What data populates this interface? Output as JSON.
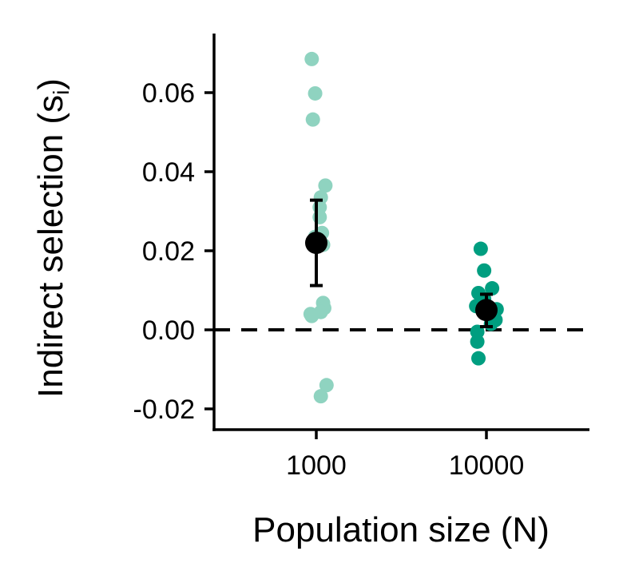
{
  "chart_data": {
    "type": "scatter",
    "xlabel": "Population size (N)",
    "ylabel": {
      "main": "Indirect selection (s",
      "sub": "i",
      "close": ")"
    },
    "categories": [
      "1000",
      "10000"
    ],
    "ylim": [
      -0.024,
      0.074
    ],
    "yticks": [
      -0.02,
      0.0,
      0.02,
      0.04,
      0.06
    ],
    "ytick_labels": [
      "-0.02",
      "0.00",
      "0.02",
      "0.04",
      "0.06"
    ],
    "reference_line": {
      "y": 0.0,
      "style": "dashed"
    },
    "grid": false,
    "legend": "none",
    "series": [
      {
        "category": "1000",
        "color": "#8fd3c0",
        "points": [
          {
            "jitter": -0.04,
            "y": 0.0685
          },
          {
            "jitter": -0.01,
            "y": 0.0598
          },
          {
            "jitter": -0.03,
            "y": 0.0532
          },
          {
            "jitter": 0.08,
            "y": 0.0365
          },
          {
            "jitter": 0.04,
            "y": 0.0335
          },
          {
            "jitter": 0.03,
            "y": 0.031
          },
          {
            "jitter": 0.03,
            "y": 0.0285
          },
          {
            "jitter": 0.05,
            "y": 0.0245
          },
          {
            "jitter": -0.01,
            "y": 0.0235
          },
          {
            "jitter": 0.06,
            "y": 0.0215
          },
          {
            "jitter": 0.06,
            "y": 0.0068
          },
          {
            "jitter": 0.07,
            "y": 0.0055
          },
          {
            "jitter": 0.04,
            "y": 0.0045
          },
          {
            "jitter": -0.05,
            "y": 0.004
          },
          {
            "jitter": -0.04,
            "y": 0.0035
          },
          {
            "jitter": 0.09,
            "y": -0.014
          },
          {
            "jitter": 0.04,
            "y": -0.0168
          }
        ],
        "mean": 0.022,
        "error_low": 0.0112,
        "error_high": 0.0328
      },
      {
        "category": "10000",
        "color": "#009e80",
        "points": [
          {
            "jitter": -0.05,
            "y": 0.0205
          },
          {
            "jitter": -0.02,
            "y": 0.015
          },
          {
            "jitter": 0.05,
            "y": 0.0105
          },
          {
            "jitter": -0.07,
            "y": 0.0093
          },
          {
            "jitter": -0.02,
            "y": 0.0078
          },
          {
            "jitter": -0.09,
            "y": 0.006
          },
          {
            "jitter": 0.09,
            "y": 0.0052
          },
          {
            "jitter": 0.03,
            "y": 0.004
          },
          {
            "jitter": 0.08,
            "y": 0.0025
          },
          {
            "jitter": 0.04,
            "y": 0.0015
          },
          {
            "jitter": -0.08,
            "y": -0.0005
          },
          {
            "jitter": -0.08,
            "y": -0.003
          },
          {
            "jitter": -0.07,
            "y": -0.0072
          }
        ],
        "mean": 0.005,
        "error_low": 0.0008,
        "error_high": 0.009
      }
    ],
    "mean_marker_color": "#000000"
  }
}
